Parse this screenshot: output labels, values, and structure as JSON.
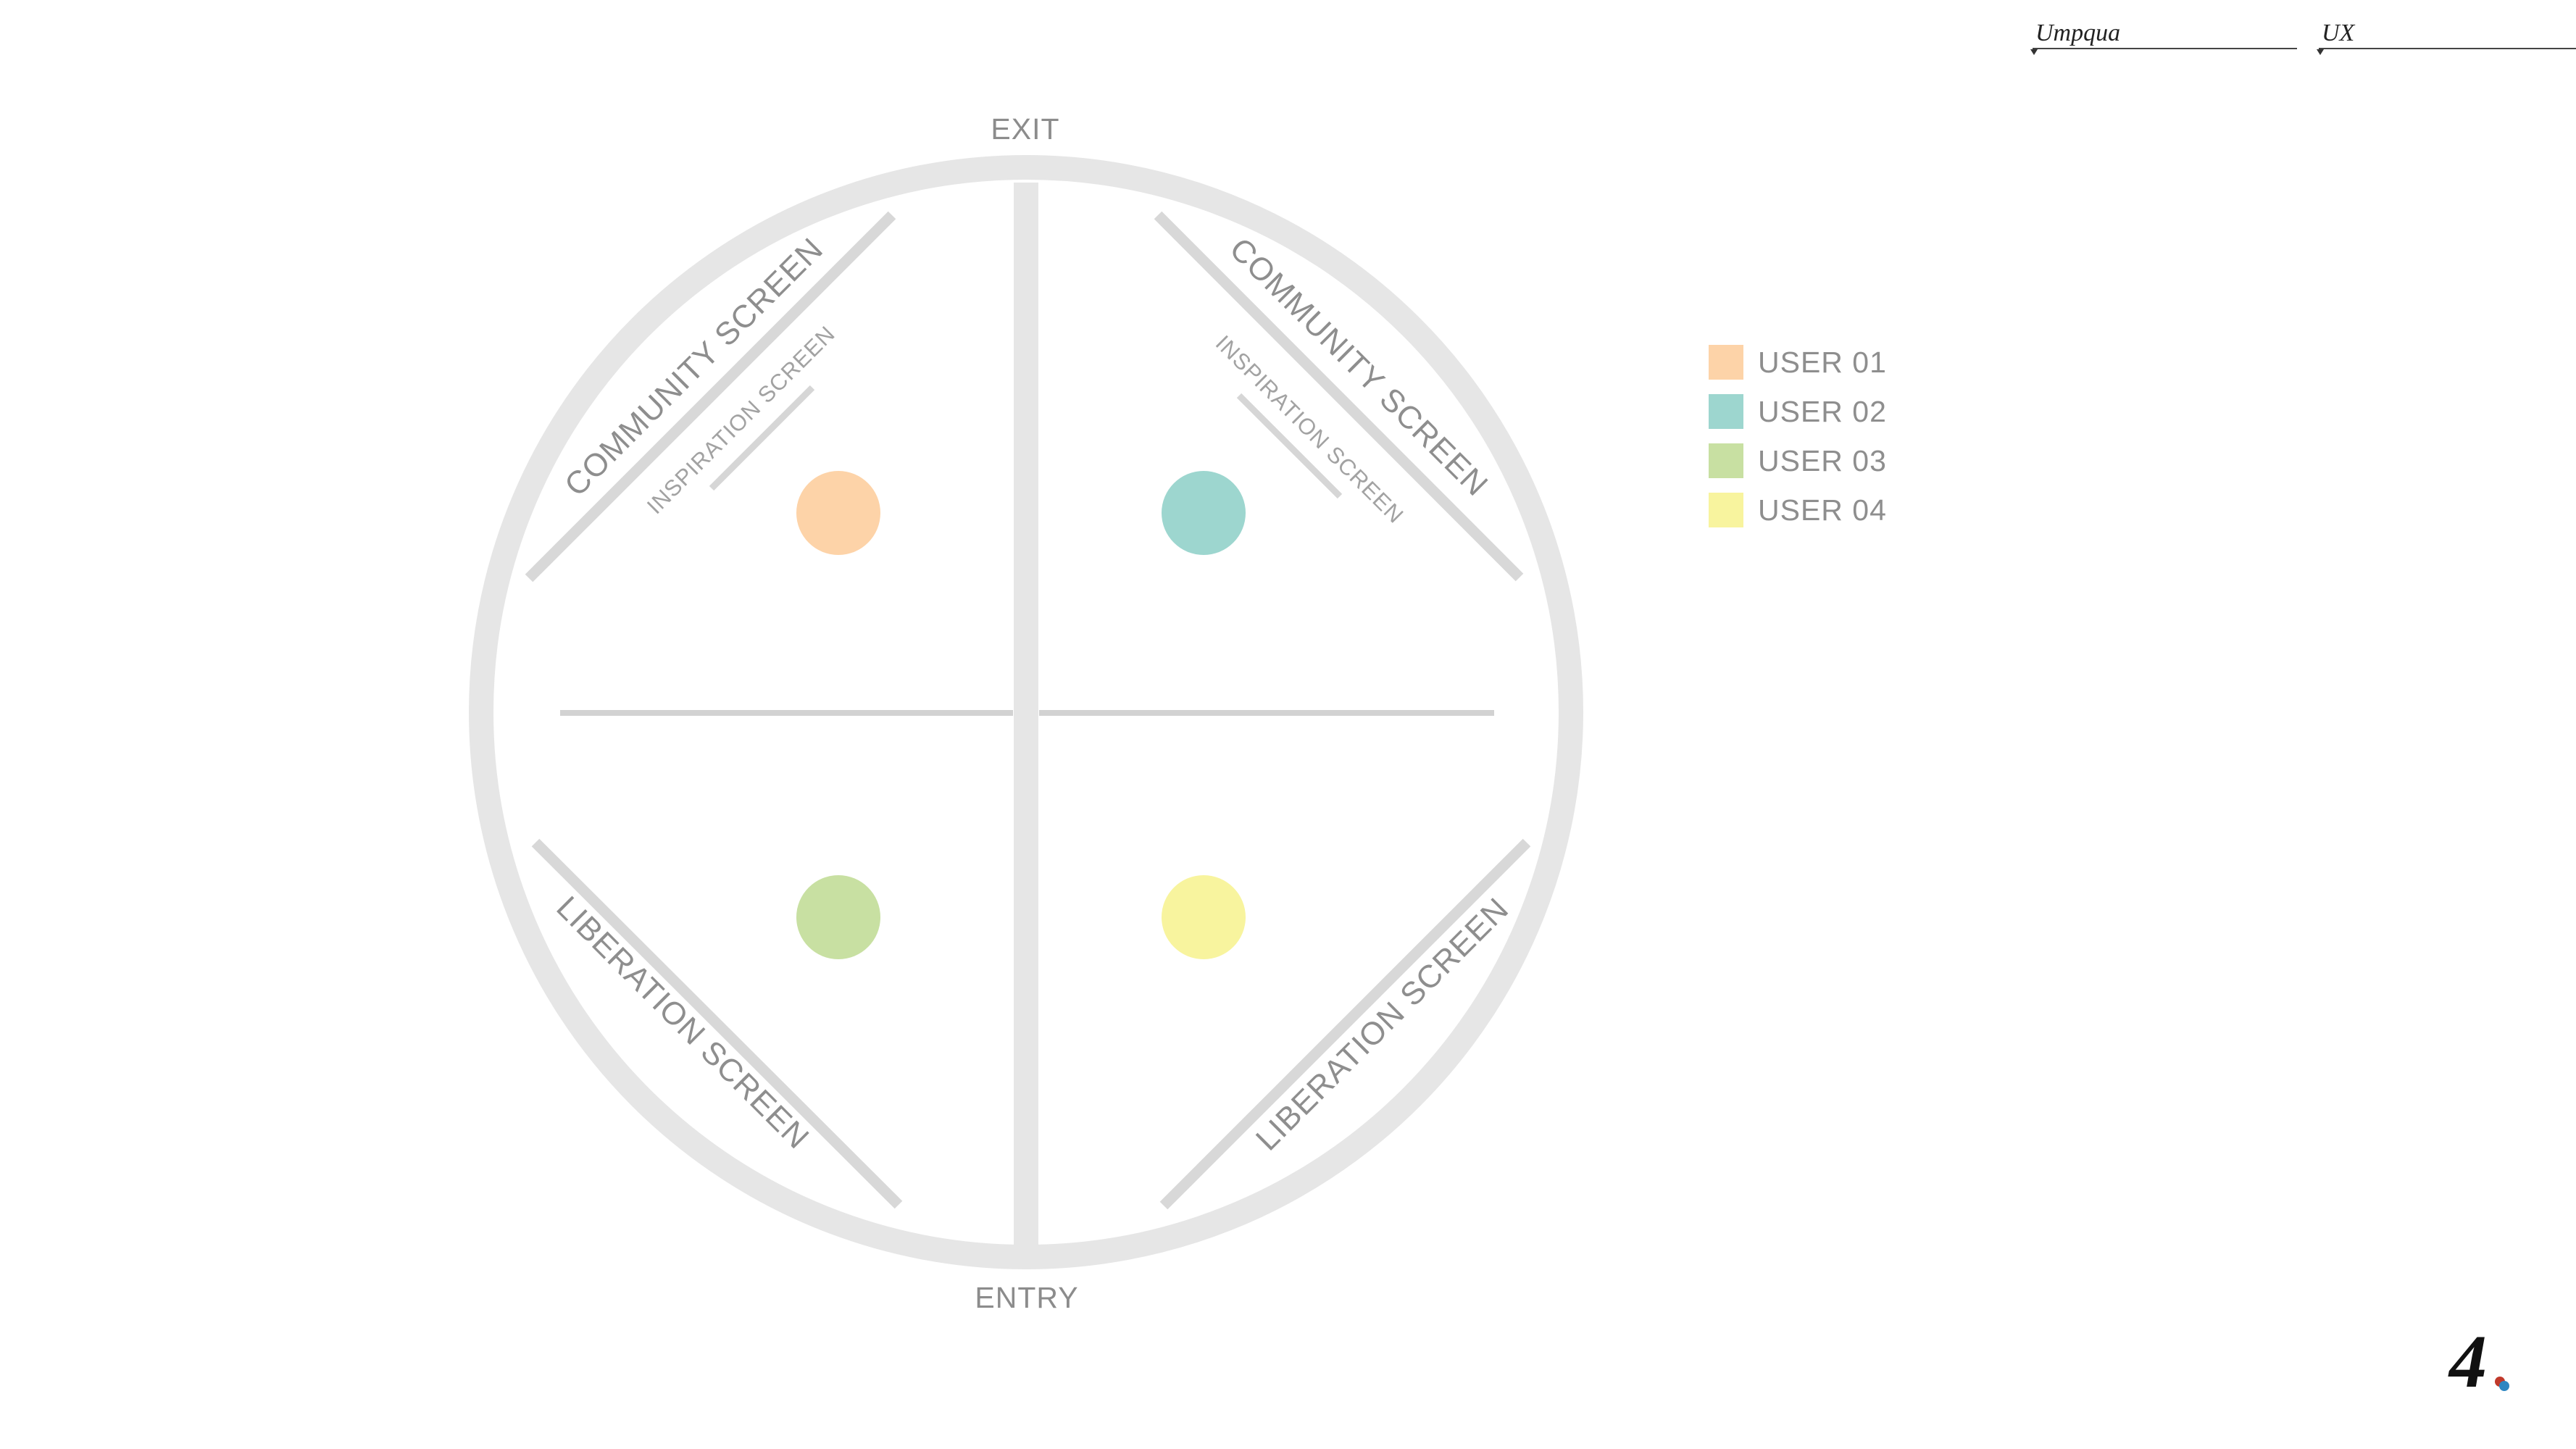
{
  "header": {
    "brand": "Umpqua",
    "topic": "UX"
  },
  "diagram": {
    "exit_label": "EXIT",
    "entry_label": "ENTRY",
    "zones": [
      {
        "id": "top-left",
        "main_label": "COMMUNITY SCREEN",
        "sub_label": "INSPIRATION SCREEN"
      },
      {
        "id": "top-right",
        "main_label": "COMMUNITY SCREEN",
        "sub_label": "INSPIRATION SCREEN"
      },
      {
        "id": "bottom-left",
        "main_label": "LIBERATION SCREEN"
      },
      {
        "id": "bottom-right",
        "main_label": "LIBERATION SCREEN"
      }
    ],
    "user_markers": [
      {
        "user": "USER 01",
        "quadrant": "top-left",
        "color": "#fdd3a8"
      },
      {
        "user": "USER 02",
        "quadrant": "top-right",
        "color": "#9dd6cf"
      },
      {
        "user": "USER 03",
        "quadrant": "bottom-left",
        "color": "#c8e0a2"
      },
      {
        "user": "USER 04",
        "quadrant": "bottom-right",
        "color": "#f8f49e"
      }
    ],
    "colors": {
      "ring": "#e6e6e6",
      "divider": "#d2d2d2"
    }
  },
  "legend": {
    "items": [
      {
        "label": "USER 01",
        "color": "#fdd3a8"
      },
      {
        "label": "USER 02",
        "color": "#9dd6cf"
      },
      {
        "label": "USER 03",
        "color": "#c8e0a2"
      },
      {
        "label": "USER 04",
        "color": "#f8f49e"
      }
    ]
  },
  "footer": {
    "page_number": "4",
    "dot_colors": [
      "#c0392b",
      "#2e86c1"
    ]
  }
}
